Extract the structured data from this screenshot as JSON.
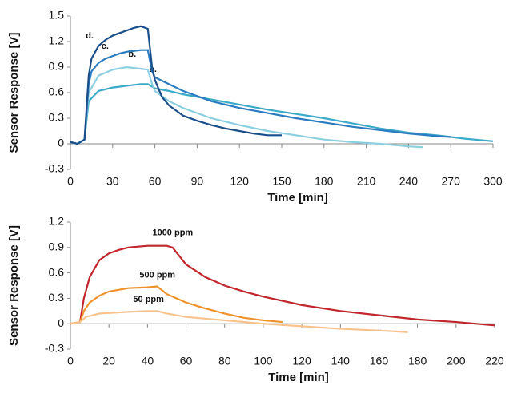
{
  "chart_data": [
    {
      "type": "line",
      "xlabel": "Time [min]",
      "ylabel": "Sensor Response [V]",
      "xlim": [
        0,
        300
      ],
      "xticks": [
        0,
        30,
        60,
        90,
        120,
        150,
        180,
        210,
        240,
        270,
        300
      ],
      "ylim": [
        -0.3,
        1.5
      ],
      "yticks": [
        -0.3,
        0,
        0.3,
        0.6,
        0.9,
        1.2,
        1.5
      ],
      "grid": false,
      "series": [
        {
          "name": "a.",
          "color": "#3aaac8",
          "x": [
            0,
            5,
            10,
            13,
            20,
            30,
            40,
            50,
            55,
            60,
            70,
            80,
            90,
            100,
            120,
            140,
            160,
            180,
            200,
            220,
            240,
            260,
            280,
            300
          ],
          "values": [
            0.02,
            0,
            0.05,
            0.5,
            0.62,
            0.66,
            0.68,
            0.7,
            0.7,
            0.65,
            0.62,
            0.58,
            0.55,
            0.52,
            0.46,
            0.4,
            0.35,
            0.3,
            0.24,
            0.18,
            0.13,
            0.1,
            0.06,
            0.03
          ]
        },
        {
          "name": "b.",
          "color": "#8ccfe0",
          "x": [
            0,
            5,
            10,
            13,
            20,
            30,
            40,
            50,
            55,
            58,
            60,
            70,
            80,
            90,
            100,
            120,
            140,
            160,
            180,
            200,
            220,
            240,
            250
          ],
          "values": [
            0.02,
            0,
            0.05,
            0.6,
            0.8,
            0.87,
            0.9,
            0.88,
            0.87,
            0.7,
            0.62,
            0.5,
            0.42,
            0.36,
            0.3,
            0.22,
            0.15,
            0.1,
            0.05,
            0.02,
            0,
            -0.03,
            -0.04
          ]
        },
        {
          "name": "c.",
          "color": "#2a7bc0",
          "x": [
            0,
            5,
            10,
            13,
            15,
            20,
            25,
            30,
            35,
            40,
            45,
            50,
            55,
            58,
            60,
            70,
            80,
            90,
            100,
            120,
            140,
            160,
            180,
            200,
            220,
            240,
            260,
            270
          ],
          "values": [
            0.02,
            0,
            0.05,
            0.7,
            0.85,
            0.95,
            1.0,
            1.03,
            1.06,
            1.08,
            1.09,
            1.1,
            1.1,
            0.85,
            0.78,
            0.7,
            0.62,
            0.56,
            0.5,
            0.42,
            0.36,
            0.3,
            0.25,
            0.2,
            0.16,
            0.12,
            0.09,
            0.08
          ]
        },
        {
          "name": "d.",
          "color": "#1b4f8a",
          "x": [
            0,
            5,
            10,
            13,
            15,
            20,
            25,
            30,
            35,
            40,
            45,
            50,
            55,
            58,
            60,
            65,
            70,
            80,
            90,
            100,
            110,
            120,
            130,
            140,
            150
          ],
          "values": [
            0.02,
            0,
            0.05,
            0.8,
            1.0,
            1.15,
            1.22,
            1.27,
            1.3,
            1.33,
            1.36,
            1.38,
            1.35,
            0.9,
            0.75,
            0.55,
            0.45,
            0.33,
            0.27,
            0.22,
            0.18,
            0.15,
            0.12,
            0.1,
            0.1
          ]
        }
      ]
    },
    {
      "type": "line",
      "xlabel": "Time [min]",
      "ylabel": "Sensor Response [V]",
      "xlim": [
        0,
        220
      ],
      "xticks": [
        0,
        20,
        40,
        60,
        80,
        100,
        120,
        140,
        160,
        180,
        200,
        220
      ],
      "ylim": [
        -0.3,
        1.2
      ],
      "yticks": [
        -0.3,
        0,
        0.3,
        0.6,
        0.9,
        1.2
      ],
      "grid": false,
      "series": [
        {
          "name": "1000 ppm",
          "color": "#c0262b",
          "x": [
            0,
            5,
            7,
            10,
            15,
            20,
            25,
            30,
            40,
            50,
            53,
            60,
            70,
            80,
            90,
            100,
            120,
            140,
            160,
            180,
            200,
            220
          ],
          "values": [
            0,
            0.02,
            0.3,
            0.55,
            0.75,
            0.83,
            0.87,
            0.9,
            0.92,
            0.92,
            0.9,
            0.7,
            0.55,
            0.45,
            0.38,
            0.32,
            0.22,
            0.15,
            0.1,
            0.05,
            0.02,
            -0.02
          ]
        },
        {
          "name": "500 ppm",
          "color": "#f0922b",
          "x": [
            0,
            5,
            7,
            10,
            15,
            20,
            30,
            40,
            45,
            50,
            60,
            70,
            80,
            90,
            100,
            110
          ],
          "values": [
            0,
            0.02,
            0.15,
            0.25,
            0.33,
            0.38,
            0.42,
            0.43,
            0.44,
            0.35,
            0.25,
            0.18,
            0.12,
            0.07,
            0.04,
            0.02
          ]
        },
        {
          "name": "50 ppm",
          "color": "#f8c28c",
          "x": [
            0,
            5,
            8,
            15,
            30,
            40,
            45,
            50,
            60,
            80,
            100,
            120,
            140,
            160,
            175
          ],
          "values": [
            0,
            0.02,
            0.08,
            0.12,
            0.14,
            0.15,
            0.15,
            0.12,
            0.08,
            0.04,
            0,
            -0.03,
            -0.06,
            -0.08,
            -0.1
          ]
        }
      ]
    }
  ]
}
